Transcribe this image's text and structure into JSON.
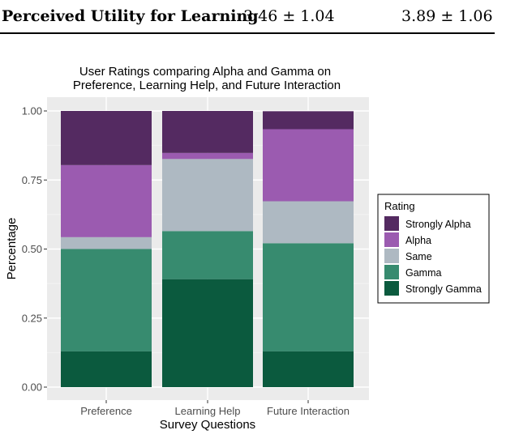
{
  "table_row": {
    "label": "Perceived Utility for Learning",
    "alpha_value": "3.46 ± 1.04",
    "gamma_value": "3.89 ± 1.06"
  },
  "chart_data": {
    "type": "stacked_bar",
    "title": "User Ratings comparing Alpha and Gamma on",
    "subtitle": "Preference, Learning Help, and Future Interaction",
    "xlabel": "Survey Questions",
    "ylabel": "Percentage",
    "ylim": [
      0,
      1
    ],
    "yticks": [
      "0.00",
      "0.25",
      "0.50",
      "0.75",
      "1.00"
    ],
    "categories": [
      "Preference",
      "Learning Help",
      "Future Interaction"
    ],
    "legend_title": "Rating",
    "legend_position": "right",
    "series": [
      {
        "name": "Strongly Alpha",
        "color": "#542a61",
        "values": [
          0.196,
          0.152,
          0.065
        ]
      },
      {
        "name": "Alpha",
        "color": "#9b5bb0",
        "values": [
          0.261,
          0.022,
          0.261
        ]
      },
      {
        "name": "Same",
        "color": "#aeb9c2",
        "values": [
          0.043,
          0.261,
          0.152
        ]
      },
      {
        "name": "Gamma",
        "color": "#378b6f",
        "values": [
          0.37,
          0.174,
          0.391
        ]
      },
      {
        "name": "Strongly Gamma",
        "color": "#0b5a3e",
        "values": [
          0.13,
          0.391,
          0.13
        ]
      }
    ]
  }
}
